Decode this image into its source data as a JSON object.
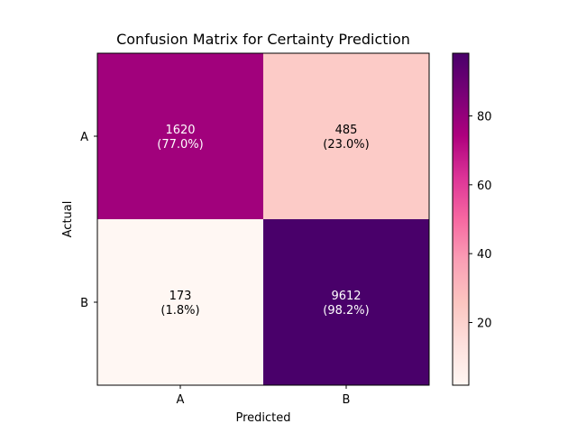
{
  "chart_data": {
    "type": "heatmap",
    "title": "Confusion Matrix for Certainty Prediction",
    "xlabel": "Predicted",
    "ylabel": "Actual",
    "x_categories": [
      "A",
      "B"
    ],
    "y_categories": [
      "A",
      "B"
    ],
    "counts": [
      [
        1620,
        485
      ],
      [
        173,
        9612
      ]
    ],
    "percent_labels": [
      [
        "(77.0%)",
        "(23.0%)"
      ],
      [
        "(1.8%)",
        "(98.2%)"
      ]
    ],
    "values_percent": [
      [
        77.0,
        23.0
      ],
      [
        1.8,
        98.2
      ]
    ],
    "colorbar": {
      "ticks": [
        20,
        40,
        60,
        80
      ],
      "range": [
        1.8,
        98.2
      ],
      "colormap": "RdPu",
      "stops": [
        "#fff7f3",
        "#fde0dd",
        "#fcc5c0",
        "#fa9fb5",
        "#f768a1",
        "#dd3497",
        "#ae017e",
        "#7a0177",
        "#49006a"
      ]
    },
    "label_colors": {
      "dark": "#000000",
      "light": "#ffffff"
    }
  }
}
